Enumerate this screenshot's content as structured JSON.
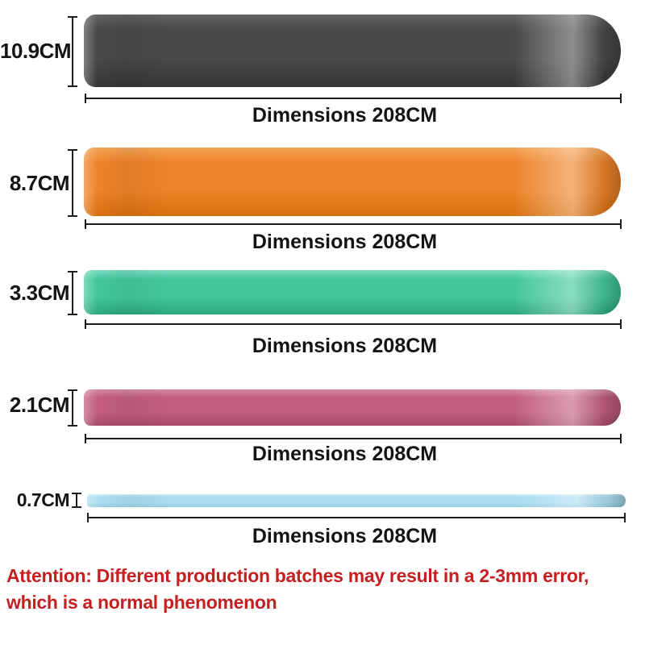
{
  "bands": [
    {
      "name": "black",
      "width_label": "10.9CM",
      "dimension_label": "Dimensions 208CM",
      "color_main": "#48484a",
      "color_light": "#626265",
      "color_dark": "#353537"
    },
    {
      "name": "orange",
      "width_label": "8.7CM",
      "dimension_label": "Dimensions 208CM",
      "color_main": "#ee8329",
      "color_light": "#f5a355",
      "color_dark": "#d8700f"
    },
    {
      "name": "green",
      "width_label": "3.3CM",
      "dimension_label": "Dimensions 208CM",
      "color_main": "#42c79a",
      "color_light": "#79dcbf",
      "color_dark": "#2ba680"
    },
    {
      "name": "pink",
      "width_label": "2.1CM",
      "dimension_label": "Dimensions 208CM",
      "color_main": "#c25e80",
      "color_light": "#d88ba3",
      "color_dark": "#a74a6b"
    },
    {
      "name": "blue",
      "width_label": "0.7CM",
      "dimension_label": "Dimensions 208CM",
      "color_main": "#abddef",
      "color_light": "#cfedf8",
      "color_dark": "#97d0e5"
    }
  ],
  "attention": {
    "lines": [
      "Attention: Different production batches may result in a 2-3mm error,",
      "which is a normal phenomenon"
    ],
    "color": "#c42021"
  },
  "measure": {
    "line_color": "#1d1d1d",
    "label_color": "#141414"
  }
}
